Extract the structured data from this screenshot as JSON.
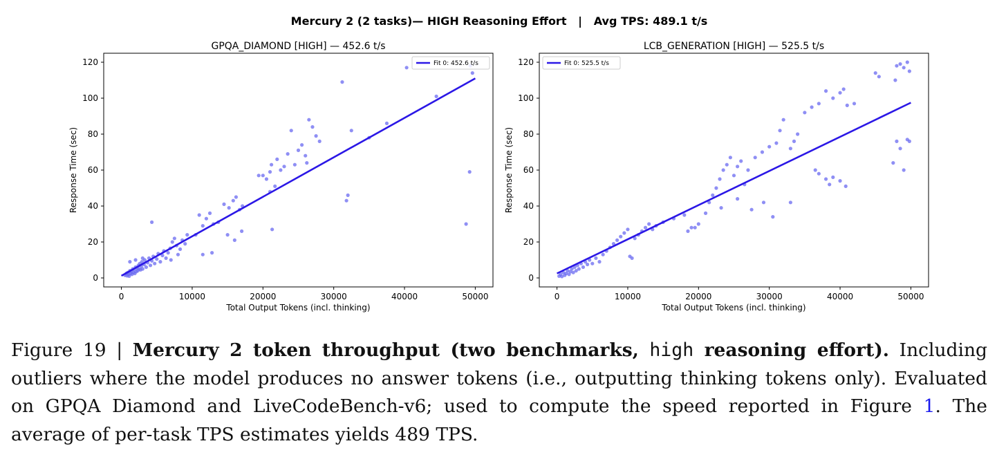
{
  "figure": {
    "suptitle": "Mercury 2 (2 tasks)— HIGH Reasoning Effort   |   Avg TPS: 489.1 t/s"
  },
  "chart_data": [
    {
      "type": "scatter",
      "title": "GPQA_DIAMOND [HIGH] — 452.6 t/s",
      "xlabel": "Total Output Tokens (incl. thinking)",
      "ylabel": "Response Time (sec)",
      "xlim": [
        -2500,
        52500
      ],
      "ylim": [
        -5,
        125
      ],
      "xticks": [
        0,
        10000,
        20000,
        30000,
        40000,
        50000
      ],
      "yticks": [
        0,
        20,
        40,
        60,
        80,
        100,
        120
      ],
      "grid": false,
      "legend_position": "upper-right",
      "point_color": "#6a6af0",
      "fit_color": "#2b17e6",
      "fit": {
        "label": "Fit 0: 452.6 t/s",
        "x": [
          0,
          50000
        ],
        "y": [
          1.2,
          111
        ]
      },
      "points": [
        [
          500,
          1.5
        ],
        [
          700,
          2.5
        ],
        [
          800,
          1.2
        ],
        [
          900,
          3
        ],
        [
          1000,
          2
        ],
        [
          1100,
          1
        ],
        [
          1200,
          4
        ],
        [
          1300,
          2.5
        ],
        [
          1400,
          3.5
        ],
        [
          1500,
          2
        ],
        [
          1600,
          5
        ],
        [
          1700,
          3
        ],
        [
          1800,
          4.5
        ],
        [
          1900,
          2.5
        ],
        [
          2000,
          6
        ],
        [
          2100,
          3.5
        ],
        [
          2200,
          5.5
        ],
        [
          2300,
          4
        ],
        [
          2400,
          7
        ],
        [
          2500,
          5
        ],
        [
          2600,
          8
        ],
        [
          2700,
          4.5
        ],
        [
          2800,
          6.5
        ],
        [
          2900,
          9
        ],
        [
          3000,
          5
        ],
        [
          3200,
          7.5
        ],
        [
          3300,
          10
        ],
        [
          3500,
          6
        ],
        [
          3700,
          8.5
        ],
        [
          3900,
          11
        ],
        [
          4100,
          7
        ],
        [
          4300,
          9.5
        ],
        [
          4500,
          12
        ],
        [
          4700,
          8
        ],
        [
          5000,
          10.5
        ],
        [
          5200,
          13.5
        ],
        [
          5500,
          9
        ],
        [
          5800,
          12.5
        ],
        [
          6000,
          15
        ],
        [
          6300,
          11
        ],
        [
          6600,
          14
        ],
        [
          6900,
          16.5
        ],
        [
          7200,
          20
        ],
        [
          7500,
          22
        ],
        [
          7800,
          18
        ],
        [
          8000,
          13
        ],
        [
          8300,
          16
        ],
        [
          8600,
          21
        ],
        [
          9000,
          19
        ],
        [
          9300,
          24
        ],
        [
          4300,
          31
        ],
        [
          1200,
          9
        ],
        [
          2000,
          10
        ],
        [
          3000,
          11
        ],
        [
          7000,
          10
        ],
        [
          11000,
          35
        ],
        [
          11500,
          29
        ],
        [
          12000,
          33
        ],
        [
          12500,
          36
        ],
        [
          13000,
          30
        ],
        [
          10500,
          24
        ],
        [
          11500,
          13
        ],
        [
          12800,
          14
        ],
        [
          13700,
          31
        ],
        [
          14500,
          41
        ],
        [
          15200,
          39
        ],
        [
          15800,
          43
        ],
        [
          16200,
          45
        ],
        [
          16700,
          38
        ],
        [
          17100,
          40
        ],
        [
          15000,
          24
        ],
        [
          16000,
          21
        ],
        [
          17000,
          26
        ],
        [
          20000,
          57
        ],
        [
          20500,
          55
        ],
        [
          21000,
          59
        ],
        [
          21200,
          63
        ],
        [
          21700,
          51
        ],
        [
          22000,
          66
        ],
        [
          22500,
          60
        ],
        [
          23000,
          62
        ],
        [
          23500,
          69
        ],
        [
          24000,
          82
        ],
        [
          24500,
          63
        ],
        [
          25000,
          71
        ],
        [
          25500,
          74
        ],
        [
          26000,
          68
        ],
        [
          26500,
          88
        ],
        [
          27000,
          84
        ],
        [
          27500,
          79
        ],
        [
          28000,
          76
        ],
        [
          21300,
          27
        ],
        [
          21000,
          48
        ],
        [
          31200,
          109
        ],
        [
          31800,
          43
        ],
        [
          32000,
          46
        ],
        [
          32500,
          82
        ],
        [
          35000,
          78
        ],
        [
          37500,
          86
        ],
        [
          40300,
          117
        ],
        [
          44500,
          101
        ],
        [
          49300,
          118
        ],
        [
          49600,
          114
        ],
        [
          49200,
          59
        ],
        [
          48700,
          30
        ],
        [
          19400,
          57
        ],
        [
          26200,
          64
        ]
      ]
    },
    {
      "type": "scatter",
      "title": "LCB_GENERATION [HIGH] — 525.5 t/s",
      "xlabel": "Total Output Tokens (incl. thinking)",
      "ylabel": "Response Time (sec)",
      "xlim": [
        -2500,
        52500
      ],
      "ylim": [
        -5,
        125
      ],
      "xticks": [
        0,
        10000,
        20000,
        30000,
        40000,
        50000
      ],
      "yticks": [
        0,
        20,
        40,
        60,
        80,
        100,
        120
      ],
      "grid": false,
      "legend_position": "upper-left",
      "point_color": "#6a6af0",
      "fit_color": "#2b17e6",
      "fit": {
        "label": "Fit 0: 525.5 t/s",
        "x": [
          0,
          50000
        ],
        "y": [
          2.5,
          97.5
        ]
      },
      "points": [
        [
          300,
          1
        ],
        [
          500,
          2
        ],
        [
          700,
          0.8
        ],
        [
          900,
          3
        ],
        [
          1100,
          1.5
        ],
        [
          1300,
          2.5
        ],
        [
          1500,
          4
        ],
        [
          1700,
          2
        ],
        [
          1900,
          3.5
        ],
        [
          2100,
          5
        ],
        [
          2300,
          3
        ],
        [
          2500,
          6
        ],
        [
          2700,
          4
        ],
        [
          2900,
          7
        ],
        [
          3100,
          5
        ],
        [
          3400,
          8
        ],
        [
          3700,
          6
        ],
        [
          4000,
          9
        ],
        [
          4300,
          7.5
        ],
        [
          4600,
          10
        ],
        [
          5000,
          8
        ],
        [
          5500,
          11
        ],
        [
          6000,
          9
        ],
        [
          6500,
          13
        ],
        [
          7000,
          15
        ],
        [
          7500,
          17
        ],
        [
          8000,
          19
        ],
        [
          8500,
          21
        ],
        [
          9000,
          23
        ],
        [
          9500,
          25
        ],
        [
          10000,
          27
        ],
        [
          10300,
          12
        ],
        [
          10600,
          11
        ],
        [
          11000,
          22
        ],
        [
          11500,
          24
        ],
        [
          12000,
          26
        ],
        [
          12500,
          28
        ],
        [
          13000,
          30
        ],
        [
          13500,
          27
        ],
        [
          14000,
          29
        ],
        [
          15000,
          31
        ],
        [
          16500,
          33
        ],
        [
          18000,
          35
        ],
        [
          18500,
          26
        ],
        [
          19000,
          28
        ],
        [
          20000,
          30
        ],
        [
          21000,
          36
        ],
        [
          21500,
          42
        ],
        [
          22000,
          46
        ],
        [
          22500,
          50
        ],
        [
          23000,
          55
        ],
        [
          23500,
          60
        ],
        [
          24000,
          63
        ],
        [
          24500,
          67
        ],
        [
          25000,
          57
        ],
        [
          25500,
          62
        ],
        [
          26000,
          65
        ],
        [
          26500,
          52
        ],
        [
          27000,
          60
        ],
        [
          28000,
          67
        ],
        [
          29000,
          70
        ],
        [
          30000,
          73
        ],
        [
          31000,
          75
        ],
        [
          31500,
          82
        ],
        [
          32000,
          88
        ],
        [
          33000,
          72
        ],
        [
          33500,
          76
        ],
        [
          34000,
          80
        ],
        [
          35000,
          92
        ],
        [
          36000,
          95
        ],
        [
          37000,
          97
        ],
        [
          38000,
          104
        ],
        [
          39000,
          100
        ],
        [
          40000,
          103
        ],
        [
          40500,
          105
        ],
        [
          41000,
          96
        ],
        [
          42000,
          97
        ],
        [
          36500,
          60
        ],
        [
          37000,
          58
        ],
        [
          38000,
          55
        ],
        [
          38500,
          52
        ],
        [
          39000,
          56
        ],
        [
          40000,
          54
        ],
        [
          40800,
          51
        ],
        [
          45000,
          114
        ],
        [
          45500,
          112
        ],
        [
          47800,
          110
        ],
        [
          48000,
          118
        ],
        [
          48500,
          119
        ],
        [
          49000,
          117
        ],
        [
          49500,
          120
        ],
        [
          49800,
          115
        ],
        [
          47500,
          64
        ],
        [
          48000,
          76
        ],
        [
          48500,
          72
        ],
        [
          49000,
          60
        ],
        [
          49500,
          77
        ],
        [
          49800,
          76
        ],
        [
          29200,
          42
        ],
        [
          33000,
          42
        ],
        [
          25500,
          44
        ],
        [
          27500,
          38
        ],
        [
          30500,
          34
        ],
        [
          23200,
          39
        ],
        [
          19500,
          28
        ]
      ]
    }
  ],
  "caption": {
    "fig_label": "Figure 19 | ",
    "bold_pre": "Mercury 2 token throughput (two benchmarks, ",
    "bold_code": "high",
    "bold_post": " reasoning effort).",
    "text_1": " Including outliers where the model produces no answer tokens (i.e., outputting thinking tokens only). Evaluated on GPQA Diamond and LiveCodeBench-v6; used to compute the speed reported in Figure ",
    "ref": "1",
    "text_2": ". The average of per-task TPS estimates yields 489 TPS."
  }
}
